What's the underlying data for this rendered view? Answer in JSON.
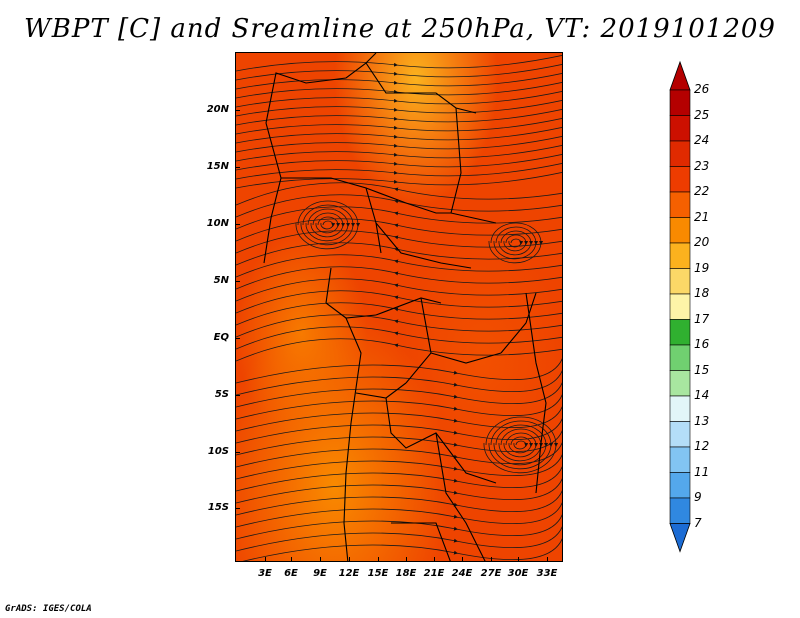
{
  "title": "WBPT [C] and Sreamline at 250hPa, VT: 2019101209",
  "y_axis": [
    "20N",
    "15N",
    "10N",
    "5N",
    "EQ",
    "5S",
    "10S",
    "15S"
  ],
  "x_axis": [
    "3E",
    "6E",
    "9E",
    "12E",
    "15E",
    "18E",
    "21E",
    "24E",
    "27E",
    "30E",
    "33E"
  ],
  "colorbar": {
    "labels": [
      "26",
      "25",
      "24",
      "23",
      "22",
      "21",
      "20",
      "19",
      "18",
      "17",
      "16",
      "15",
      "14",
      "13",
      "12",
      "11",
      "9",
      "7"
    ],
    "colors": [
      "#b40000",
      "#cc1000",
      "#e02a00",
      "#ee3c00",
      "#f56000",
      "#f98a00",
      "#fbb21e",
      "#fbd867",
      "#fdf4a8",
      "#30b030",
      "#70d070",
      "#a8e6a0",
      "#e2f6f8",
      "#b4def8",
      "#82c4f2",
      "#54a8ec",
      "#3088e0",
      "#1c6cd4"
    ]
  },
  "footer": "GrADS: IGES/COLA"
}
